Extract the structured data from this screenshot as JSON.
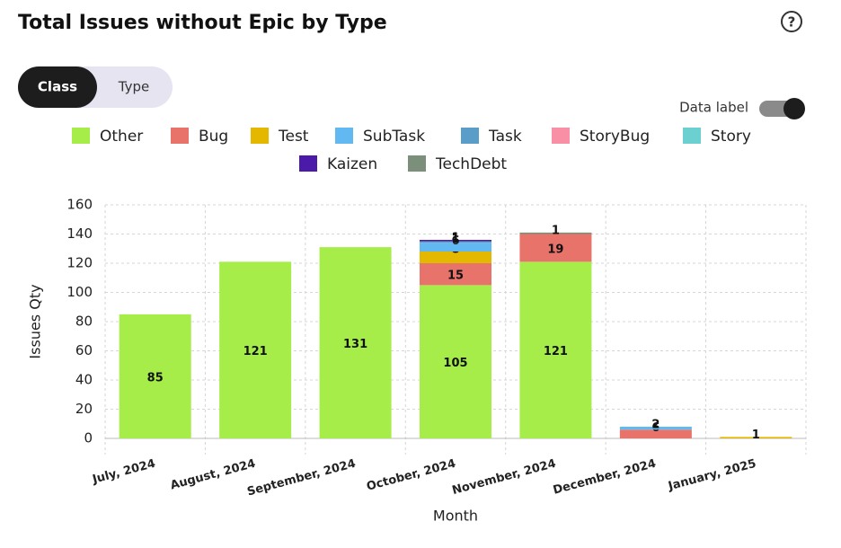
{
  "tabs": [
    "Class",
    "Type"
  ],
  "toggle_label": "Data label",
  "chart_data": {
    "type": "bar",
    "stacked": true,
    "title": "Total Issues without Epic by Type",
    "x_label": "Month",
    "y_label": "Issues Qty",
    "categories": [
      "July, 2024",
      "August, 2024",
      "September, 2024",
      "October, 2024",
      "November, 2024",
      "December, 2024",
      "January, 2025"
    ],
    "series": [
      {
        "name": "Other",
        "color": "#a6ed4a",
        "values": [
          85,
          121,
          131,
          105,
          121,
          null,
          null
        ]
      },
      {
        "name": "Bug",
        "color": "#e8736a",
        "values": [
          null,
          null,
          null,
          15,
          19,
          6,
          null
        ]
      },
      {
        "name": "Test",
        "color": "#e5b800",
        "values": [
          null,
          null,
          null,
          8,
          null,
          null,
          1
        ]
      },
      {
        "name": "SubTask",
        "color": "#62b8f0",
        "values": [
          null,
          null,
          null,
          6,
          null,
          2,
          null
        ]
      },
      {
        "name": "Task",
        "color": "#5b9dc9",
        "values": [
          null,
          null,
          null,
          1,
          null,
          null,
          null
        ]
      },
      {
        "name": "StoryBug",
        "color": "#f98fa5",
        "values": [
          null,
          null,
          null,
          null,
          null,
          null,
          null
        ]
      },
      {
        "name": "Story",
        "color": "#6ccfd0",
        "values": [
          null,
          null,
          null,
          null,
          null,
          null,
          null
        ]
      },
      {
        "name": "Kaizen",
        "color": "#4b1aa8",
        "values": [
          null,
          null,
          null,
          1,
          null,
          null,
          null
        ]
      },
      {
        "name": "TechDebt",
        "color": "#7b8f7a",
        "values": [
          null,
          null,
          null,
          null,
          1,
          null,
          null
        ]
      }
    ],
    "ylim": [
      0,
      160
    ],
    "yticks": [
      0,
      20,
      40,
      60,
      80,
      100,
      120,
      140,
      160
    ],
    "grid": true,
    "data_labels": true
  }
}
